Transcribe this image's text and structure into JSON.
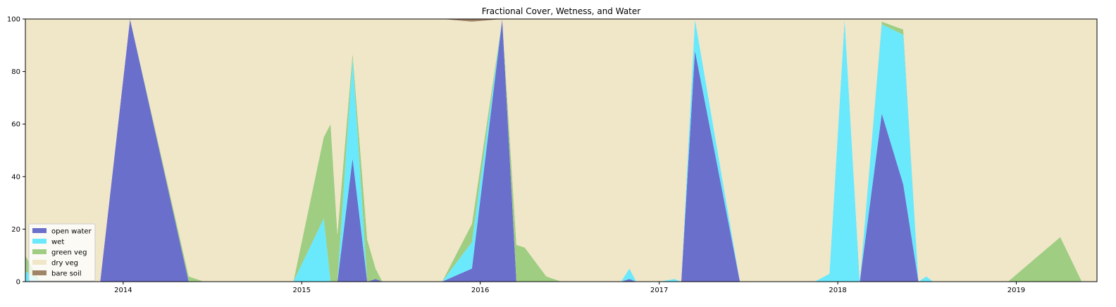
{
  "chart_data": {
    "type": "area",
    "stacked": true,
    "title": "Fractional Cover, Wetness, and Water",
    "xlabel": "",
    "ylabel": "",
    "ylim": [
      0,
      100
    ],
    "xlim": [
      "2013-06-15",
      "2019-06-15"
    ],
    "x_ticks": [
      "2014",
      "2015",
      "2016",
      "2017",
      "2018",
      "2019"
    ],
    "y_ticks": [
      "0",
      "20",
      "40",
      "60",
      "80",
      "100"
    ],
    "grid": false,
    "legend_position": "bottom-left",
    "x": [
      "2013-06-15",
      "2013-07-15",
      "2013-11-15",
      "2014-01-15",
      "2014-05-15",
      "2014-06-15",
      "2014-12-15",
      "2015-02-15",
      "2015-03-01",
      "2015-03-15",
      "2015-04-15",
      "2015-05-15",
      "2015-06-01",
      "2015-06-15",
      "2015-10-15",
      "2015-12-15",
      "2016-02-15",
      "2016-03-15",
      "2016-04-01",
      "2016-05-15",
      "2016-06-15",
      "2016-10-15",
      "2016-11-01",
      "2016-11-15",
      "2017-01-01",
      "2017-02-01",
      "2017-02-15",
      "2017-03-15",
      "2017-06-15",
      "2017-11-15",
      "2017-12-15",
      "2018-01-15",
      "2018-02-15",
      "2018-04-01",
      "2018-05-15",
      "2018-06-15",
      "2018-07-01",
      "2018-07-15",
      "2018-12-15",
      "2019-04-01",
      "2019-05-15",
      "2019-06-15"
    ],
    "series": [
      {
        "name": "open water",
        "color": "#6a6fcc",
        "values": [
          0,
          0,
          0,
          100,
          0,
          0,
          0,
          0,
          0,
          0,
          47,
          0,
          1,
          0,
          0,
          5,
          100,
          0,
          0,
          0,
          0,
          0,
          1,
          0,
          0,
          0,
          0,
          88,
          0,
          0,
          0,
          0,
          0,
          64,
          37,
          0,
          0,
          0,
          0,
          0,
          0,
          0
        ]
      },
      {
        "name": "wet",
        "color": "#6ae8fc",
        "values": [
          4,
          0,
          0,
          0,
          0,
          0,
          0,
          24,
          0,
          0,
          38,
          0,
          0,
          0,
          0,
          10,
          0,
          0,
          0,
          0,
          0,
          0,
          4,
          0,
          0,
          1,
          0,
          12,
          0,
          0,
          3,
          100,
          0,
          34,
          57,
          0,
          2,
          0,
          0,
          0,
          0,
          0
        ]
      },
      {
        "name": "green veg",
        "color": "#9fcd82",
        "values": [
          6,
          0,
          0,
          0,
          2,
          0,
          0,
          31,
          60,
          18,
          2,
          16,
          4,
          0,
          0,
          7,
          0,
          14,
          13,
          2,
          0,
          0,
          0,
          0,
          0,
          0,
          0,
          0,
          0,
          0,
          0,
          0,
          0,
          1,
          2,
          0,
          0,
          0,
          0,
          17,
          0,
          0
        ]
      },
      {
        "name": "dry veg",
        "color": "#f0e6c8",
        "values": [
          90,
          100,
          100,
          0,
          98,
          100,
          100,
          45,
          40,
          82,
          13,
          84,
          95,
          100,
          100,
          77,
          0,
          86,
          87,
          98,
          100,
          100,
          95,
          100,
          100,
          99,
          100,
          0,
          100,
          100,
          97,
          0,
          100,
          1,
          4,
          100,
          98,
          100,
          100,
          83,
          100,
          100
        ]
      },
      {
        "name": "bare soil",
        "color": "#a08466",
        "values": [
          0,
          0,
          0,
          0,
          0,
          0,
          0,
          0,
          0,
          0,
          0,
          0,
          0,
          0,
          0,
          1,
          0,
          0,
          0,
          0,
          0,
          0,
          0,
          0,
          0,
          0,
          0,
          0,
          0,
          0,
          0,
          0,
          0,
          0,
          0,
          0,
          0,
          0,
          0,
          0,
          0,
          0
        ]
      }
    ]
  }
}
